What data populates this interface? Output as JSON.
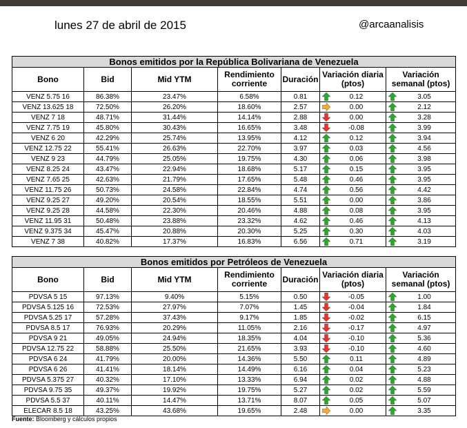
{
  "header": {
    "date": "lunes 27 de abril de 2015",
    "handle": "@arcaanalisis"
  },
  "colors": {
    "up": "#29a829",
    "down": "#e8322a",
    "flat": "#f4ad2d",
    "title_bg": "#d9d9d9"
  },
  "icons": {
    "up": "arrow-up-icon",
    "down": "arrow-down-icon",
    "flat": "arrow-right-icon"
  },
  "columns": [
    "Bono",
    "Bid",
    "Mid YTM",
    "Rendimiento corriente",
    "Duración",
    "Variación diaria (ptos)",
    "Variación semanal (ptos)"
  ],
  "tables": [
    {
      "title": "Bonos emitidos por la República Bolivariana de Venezuela",
      "rows": [
        {
          "bono": "VENZ 5.75 16",
          "bid": "86.38%",
          "ytm": "23.47%",
          "rend": "6.58%",
          "dur": "0.81",
          "dd": "up",
          "daily": "0.12",
          "wd": "up",
          "weekly": "3.05"
        },
        {
          "bono": "VENZ 13.625 18",
          "bid": "72.50%",
          "ytm": "26.20%",
          "rend": "18.60%",
          "dur": "2.57",
          "dd": "flat",
          "daily": "0.00",
          "wd": "up",
          "weekly": "2.12"
        },
        {
          "bono": "VENZ 7 18",
          "bid": "48.71%",
          "ytm": "31.44%",
          "rend": "14.14%",
          "dur": "2.88",
          "dd": "down",
          "daily": "0.00",
          "wd": "up",
          "weekly": "3.28"
        },
        {
          "bono": "VENZ 7.75 19",
          "bid": "45.80%",
          "ytm": "30.43%",
          "rend": "16.65%",
          "dur": "3.48",
          "dd": "down",
          "daily": "-0.08",
          "wd": "up",
          "weekly": "3.99"
        },
        {
          "bono": "VENZ 6 20",
          "bid": "42.29%",
          "ytm": "25.74%",
          "rend": "13.95%",
          "dur": "4.12",
          "dd": "up",
          "daily": "0.12",
          "wd": "up",
          "weekly": "3.94"
        },
        {
          "bono": "VENZ 12.75 22",
          "bid": "55.41%",
          "ytm": "26.63%",
          "rend": "22.70%",
          "dur": "3.97",
          "dd": "up",
          "daily": "0.03",
          "wd": "up",
          "weekly": "4.56"
        },
        {
          "bono": "VENZ 9 23",
          "bid": "44.79%",
          "ytm": "25.05%",
          "rend": "19.75%",
          "dur": "4.30",
          "dd": "up",
          "daily": "0.06",
          "wd": "up",
          "weekly": "3.98"
        },
        {
          "bono": "VENZ 8.25 24",
          "bid": "43.47%",
          "ytm": "22.94%",
          "rend": "18.68%",
          "dur": "5.17",
          "dd": "up",
          "daily": "0.15",
          "wd": "up",
          "weekly": "3.95"
        },
        {
          "bono": "VENZ 7.65 25",
          "bid": "42.63%",
          "ytm": "21.79%",
          "rend": "17.65%",
          "dur": "5.48",
          "dd": "up",
          "daily": "0.46",
          "wd": "up",
          "weekly": "3.95"
        },
        {
          "bono": "VENZ 11.75 26",
          "bid": "50.73%",
          "ytm": "24.58%",
          "rend": "22.84%",
          "dur": "4.74",
          "dd": "up",
          "daily": "0.56",
          "wd": "up",
          "weekly": "4.42"
        },
        {
          "bono": "VENZ 9.25 27",
          "bid": "49.20%",
          "ytm": "20.54%",
          "rend": "18.55%",
          "dur": "5.51",
          "dd": "up",
          "daily": "0.00",
          "wd": "up",
          "weekly": "3.86"
        },
        {
          "bono": "VENZ 9.25 28",
          "bid": "44.58%",
          "ytm": "22.30%",
          "rend": "20.46%",
          "dur": "4.88",
          "dd": "up",
          "daily": "0.08",
          "wd": "up",
          "weekly": "3.95"
        },
        {
          "bono": "VENZ 11.95 31",
          "bid": "50.48%",
          "ytm": "23.88%",
          "rend": "23.32%",
          "dur": "4.62",
          "dd": "up",
          "daily": "0.46",
          "wd": "up",
          "weekly": "4.13"
        },
        {
          "bono": "VENZ 9.375 34",
          "bid": "45.47%",
          "ytm": "20.88%",
          "rend": "20.30%",
          "dur": "5.25",
          "dd": "up",
          "daily": "0.30",
          "wd": "up",
          "weekly": "4.03"
        },
        {
          "bono": "VENZ 7 38",
          "bid": "40.82%",
          "ytm": "17.37%",
          "rend": "16.83%",
          "dur": "6.56",
          "dd": "up",
          "daily": "0.71",
          "wd": "up",
          "weekly": "3.19"
        }
      ]
    },
    {
      "title": "Bonos emitidos por Petróleos de Venezuela",
      "rows": [
        {
          "bono": "PDVSA 5 15",
          "bid": "97.13%",
          "ytm": "9.40%",
          "rend": "5.15%",
          "dur": "0.50",
          "dd": "down",
          "daily": "-0.05",
          "wd": "up",
          "weekly": "1.00"
        },
        {
          "bono": "PDVSA 5.125 16",
          "bid": "72.53%",
          "ytm": "27.97%",
          "rend": "7.07%",
          "dur": "1.45",
          "dd": "down",
          "daily": "-0.04",
          "wd": "up",
          "weekly": "1.84"
        },
        {
          "bono": "PDVSA 5.25 17",
          "bid": "57.28%",
          "ytm": "37.43%",
          "rend": "9.17%",
          "dur": "1.85",
          "dd": "down",
          "daily": "-0.02",
          "wd": "up",
          "weekly": "6.15"
        },
        {
          "bono": "PDVSA 8.5 17",
          "bid": "76.93%",
          "ytm": "20.29%",
          "rend": "11.05%",
          "dur": "2.16",
          "dd": "down",
          "daily": "-0.17",
          "wd": "up",
          "weekly": "4.97"
        },
        {
          "bono": "PDVSA 9 21",
          "bid": "49.05%",
          "ytm": "24.94%",
          "rend": "18.35%",
          "dur": "4.04",
          "dd": "down",
          "daily": "-0.10",
          "wd": "up",
          "weekly": "5.36"
        },
        {
          "bono": "PDVSA 12.75 22",
          "bid": "58.88%",
          "ytm": "25.50%",
          "rend": "21.65%",
          "dur": "3.93",
          "dd": "down",
          "daily": "-0.10",
          "wd": "up",
          "weekly": "4.60"
        },
        {
          "bono": "PDVSA 6 24",
          "bid": "41.79%",
          "ytm": "20.00%",
          "rend": "14.36%",
          "dur": "5.50",
          "dd": "up",
          "daily": "0.11",
          "wd": "up",
          "weekly": "4.89"
        },
        {
          "bono": "PDVSA 6 26",
          "bid": "41.41%",
          "ytm": "18.14%",
          "rend": "14.49%",
          "dur": "6.16",
          "dd": "up",
          "daily": "0.04",
          "wd": "up",
          "weekly": "5.23"
        },
        {
          "bono": "PDVSA 5.375 27",
          "bid": "40.32%",
          "ytm": "17.10%",
          "rend": "13.33%",
          "dur": "6.94",
          "dd": "up",
          "daily": "0.02",
          "wd": "up",
          "weekly": "4.88"
        },
        {
          "bono": "PDVSA 9.75 35",
          "bid": "49.37%",
          "ytm": "19.92%",
          "rend": "19.75%",
          "dur": "5.27",
          "dd": "up",
          "daily": "0.02",
          "wd": "up",
          "weekly": "5.59"
        },
        {
          "bono": "PDVSA 5.5 37",
          "bid": "40.11%",
          "ytm": "14.47%",
          "rend": "13.71%",
          "dur": "8.07",
          "dd": "up",
          "daily": "0.05",
          "wd": "up",
          "weekly": "5.07"
        },
        {
          "bono": "ELECAR 8.5 18",
          "bid": "43.25%",
          "ytm": "43.68%",
          "rend": "19.65%",
          "dur": "2.48",
          "dd": "flat",
          "daily": "0.00",
          "wd": "up",
          "weekly": "3.35"
        }
      ]
    }
  ],
  "footer": {
    "source_label": "Fuente:",
    "source_text": " Bloomberg y cálculos propios"
  }
}
